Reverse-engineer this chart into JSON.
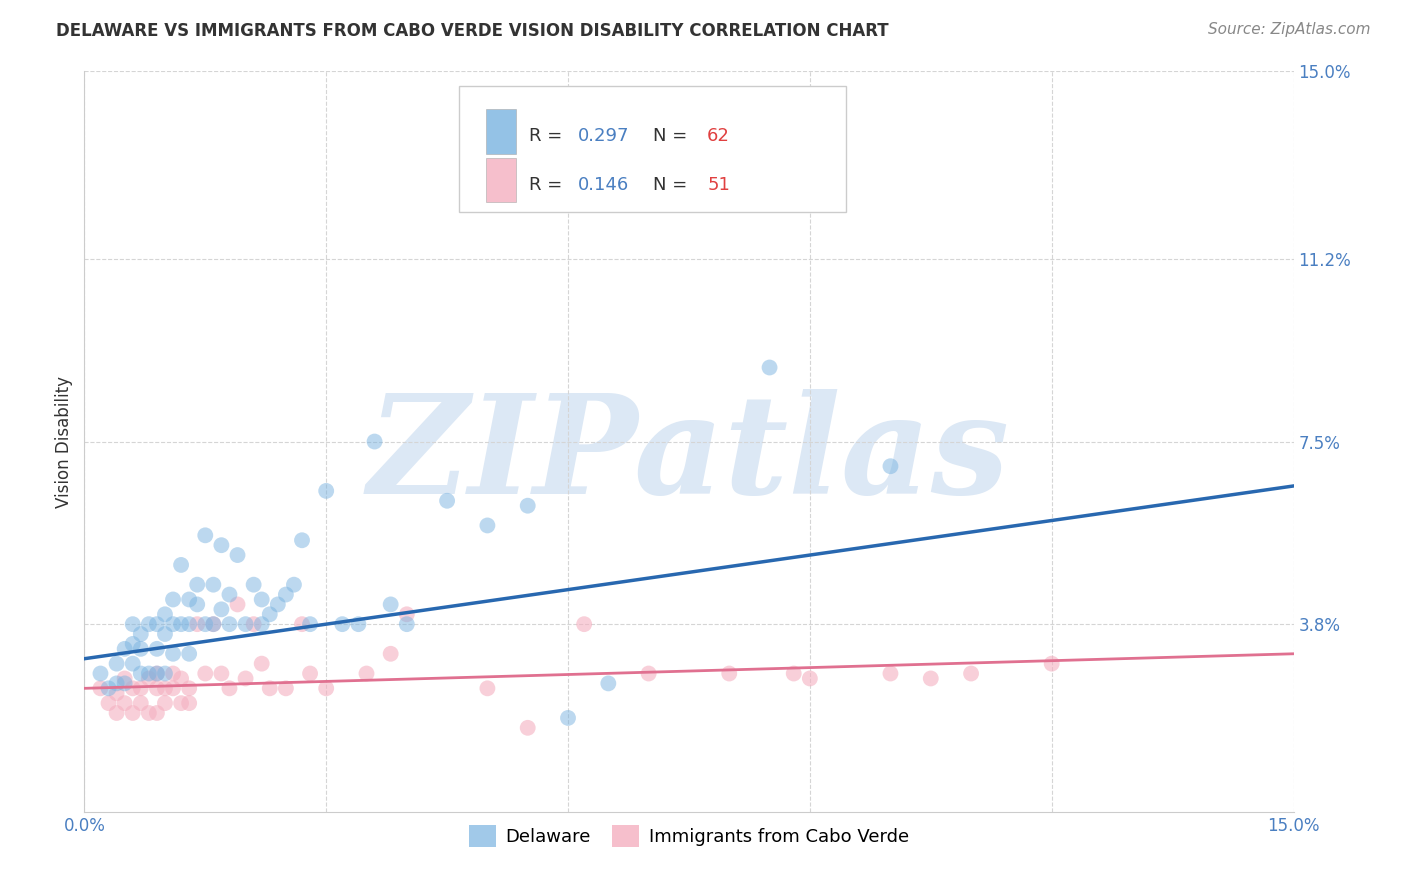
{
  "title": "DELAWARE VS IMMIGRANTS FROM CABO VERDE VISION DISABILITY CORRELATION CHART",
  "source": "Source: ZipAtlas.com",
  "ylabel": "Vision Disability",
  "xlim": [
    0.0,
    0.15
  ],
  "ylim": [
    0.0,
    0.15
  ],
  "blue_R": 0.297,
  "blue_N": 62,
  "pink_R": 0.146,
  "pink_N": 51,
  "blue_scatter_x": [
    0.002,
    0.003,
    0.004,
    0.004,
    0.005,
    0.005,
    0.006,
    0.006,
    0.006,
    0.007,
    0.007,
    0.007,
    0.008,
    0.008,
    0.009,
    0.009,
    0.009,
    0.01,
    0.01,
    0.01,
    0.011,
    0.011,
    0.011,
    0.012,
    0.012,
    0.013,
    0.013,
    0.013,
    0.014,
    0.014,
    0.015,
    0.015,
    0.016,
    0.016,
    0.017,
    0.017,
    0.018,
    0.018,
    0.019,
    0.02,
    0.021,
    0.022,
    0.022,
    0.023,
    0.024,
    0.025,
    0.026,
    0.027,
    0.028,
    0.03,
    0.032,
    0.034,
    0.036,
    0.038,
    0.04,
    0.045,
    0.05,
    0.055,
    0.06,
    0.065,
    0.085,
    0.1
  ],
  "blue_scatter_y": [
    0.028,
    0.025,
    0.03,
    0.026,
    0.033,
    0.026,
    0.038,
    0.034,
    0.03,
    0.033,
    0.028,
    0.036,
    0.038,
    0.028,
    0.033,
    0.038,
    0.028,
    0.04,
    0.036,
    0.028,
    0.043,
    0.038,
    0.032,
    0.038,
    0.05,
    0.043,
    0.038,
    0.032,
    0.042,
    0.046,
    0.038,
    0.056,
    0.038,
    0.046,
    0.041,
    0.054,
    0.044,
    0.038,
    0.052,
    0.038,
    0.046,
    0.038,
    0.043,
    0.04,
    0.042,
    0.044,
    0.046,
    0.055,
    0.038,
    0.065,
    0.038,
    0.038,
    0.075,
    0.042,
    0.038,
    0.063,
    0.058,
    0.062,
    0.019,
    0.026,
    0.09,
    0.07
  ],
  "pink_scatter_x": [
    0.002,
    0.003,
    0.004,
    0.004,
    0.005,
    0.005,
    0.006,
    0.006,
    0.007,
    0.007,
    0.008,
    0.008,
    0.009,
    0.009,
    0.009,
    0.01,
    0.01,
    0.011,
    0.011,
    0.012,
    0.012,
    0.013,
    0.013,
    0.014,
    0.015,
    0.016,
    0.017,
    0.018,
    0.019,
    0.02,
    0.021,
    0.022,
    0.023,
    0.025,
    0.027,
    0.028,
    0.03,
    0.035,
    0.038,
    0.04,
    0.05,
    0.055,
    0.062,
    0.07,
    0.08,
    0.088,
    0.09,
    0.1,
    0.105,
    0.11,
    0.12
  ],
  "pink_scatter_y": [
    0.025,
    0.022,
    0.024,
    0.02,
    0.027,
    0.022,
    0.025,
    0.02,
    0.025,
    0.022,
    0.027,
    0.02,
    0.028,
    0.025,
    0.02,
    0.025,
    0.022,
    0.028,
    0.025,
    0.022,
    0.027,
    0.025,
    0.022,
    0.038,
    0.028,
    0.038,
    0.028,
    0.025,
    0.042,
    0.027,
    0.038,
    0.03,
    0.025,
    0.025,
    0.038,
    0.028,
    0.025,
    0.028,
    0.032,
    0.04,
    0.025,
    0.017,
    0.038,
    0.028,
    0.028,
    0.028,
    0.027,
    0.028,
    0.027,
    0.028,
    0.03
  ],
  "blue_line_start_x": 0.0,
  "blue_line_start_y": 0.031,
  "blue_line_end_x": 0.15,
  "blue_line_end_y": 0.066,
  "pink_line_start_x": 0.0,
  "pink_line_start_y": 0.025,
  "pink_line_end_x": 0.15,
  "pink_line_end_y": 0.032,
  "blue_color": "#7ab3e0",
  "pink_color": "#f4b0c0",
  "blue_line_color": "#2868b0",
  "pink_line_color": "#e07090",
  "bg_color": "#ffffff",
  "watermark_text": "ZIPatlas",
  "watermark_color": "#dce8f5",
  "grid_color": "#d5d5d5",
  "title_fontsize": 12,
  "source_fontsize": 11,
  "tick_fontsize": 12,
  "ylabel_fontsize": 12,
  "legend_fontsize": 13,
  "bottom_legend_labels": [
    "Delaware",
    "Immigrants from Cabo Verde"
  ]
}
